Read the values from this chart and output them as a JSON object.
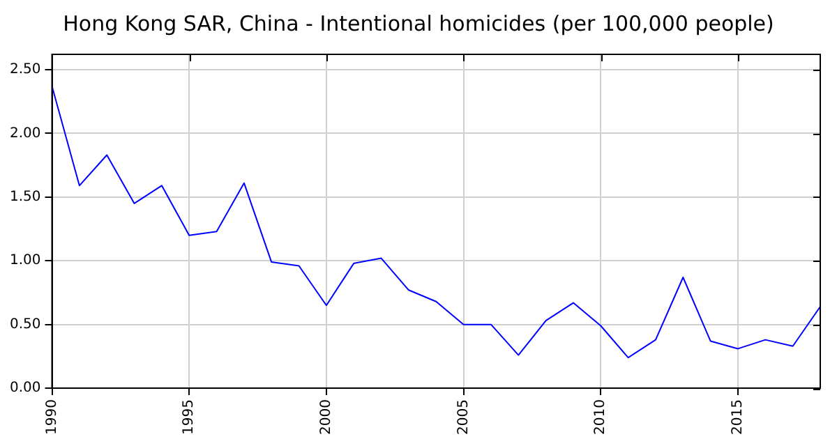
{
  "chart_data": {
    "type": "line",
    "title": "Hong Kong SAR, China - Intentional homicides (per 100,000 people)",
    "x": [
      1990,
      1991,
      1992,
      1993,
      1994,
      1995,
      1996,
      1997,
      1998,
      1999,
      2000,
      2001,
      2002,
      2003,
      2004,
      2005,
      2006,
      2007,
      2008,
      2009,
      2010,
      2011,
      2012,
      2013,
      2014,
      2015,
      2016,
      2017,
      2018
    ],
    "series": [
      {
        "color": "#0000ff",
        "values": [
          2.37,
          1.59,
          1.83,
          1.45,
          1.59,
          1.2,
          1.23,
          1.61,
          0.99,
          0.96,
          0.65,
          0.98,
          1.02,
          0.77,
          0.68,
          0.5,
          0.5,
          0.26,
          0.53,
          0.67,
          0.49,
          0.24,
          0.38,
          0.87,
          0.37,
          0.31,
          0.38,
          0.33,
          0.64
        ]
      }
    ],
    "xlim": [
      1990,
      2018
    ],
    "xticks": [
      1990,
      1995,
      2000,
      2005,
      2010,
      2015
    ],
    "ylim": [
      0,
      2.62
    ],
    "yticks": [
      {
        "value": 0,
        "label": "0.00"
      },
      {
        "value": 0.5,
        "label": "0.50"
      },
      {
        "value": 1,
        "label": "1.00"
      },
      {
        "value": 1.5,
        "label": "1.50"
      },
      {
        "value": 2,
        "label": "2.00"
      },
      {
        "value": 2.5,
        "label": "2.50"
      }
    ],
    "grid": true,
    "legend": false,
    "marker": "none",
    "line_style": "solid"
  }
}
